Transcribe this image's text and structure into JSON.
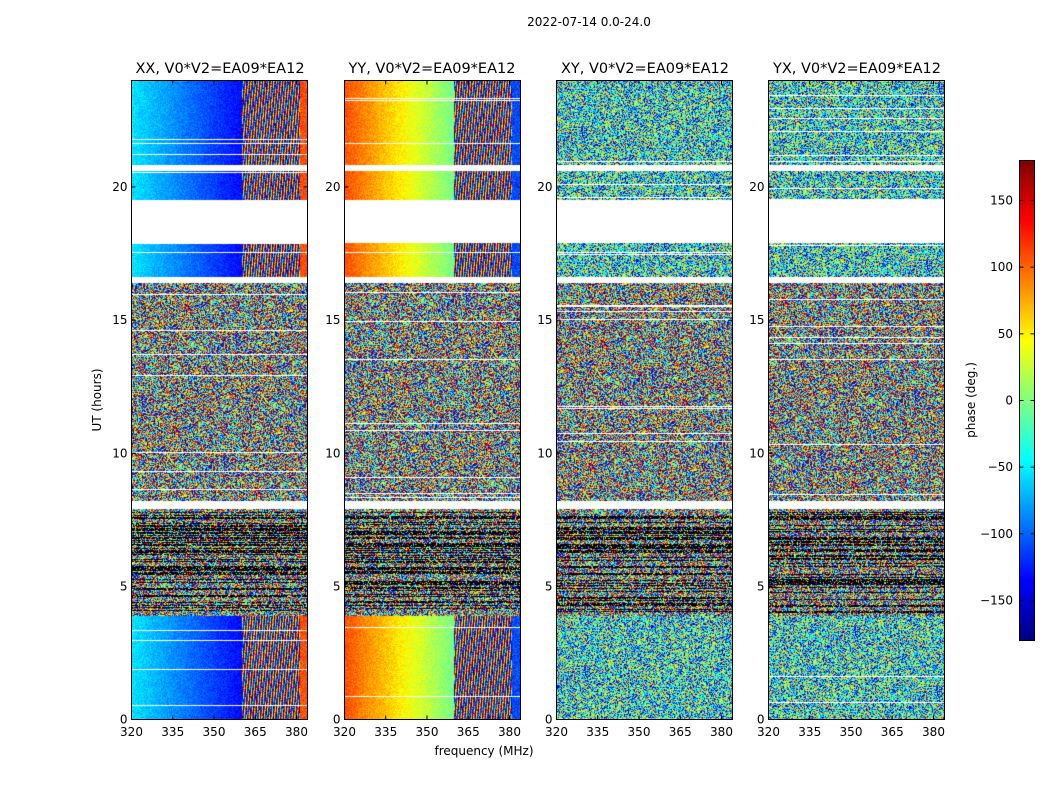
{
  "suptitle": "2022-07-14 0.0-24.0",
  "chart_data": {
    "type": "heatmap",
    "xlabel": "frequency (MHz)",
    "ylabel": "UT (hours)",
    "xlim": [
      320,
      384
    ],
    "ylim": [
      0,
      24
    ],
    "xticks": [
      "320",
      "335",
      "350",
      "365",
      "380"
    ],
    "yticks": [
      "0",
      "5",
      "10",
      "15",
      "20"
    ],
    "colorbar": {
      "label": "phase (deg.)",
      "range": [
        -180,
        180
      ],
      "ticks": [
        "150",
        "100",
        "50",
        "0",
        "−50",
        "−100",
        "−150"
      ],
      "colormap": "jet"
    },
    "panels": [
      {
        "title": "XX, V0*V2=EA09*EA12",
        "pattern": "parallel",
        "band": "cold"
      },
      {
        "title": "YY, V0*V2=EA09*EA12",
        "pattern": "parallel",
        "band": "warm"
      },
      {
        "title": "XY, V0*V2=EA09*EA12",
        "pattern": "cross",
        "band": "noise"
      },
      {
        "title": "YX, V0*V2=EA09*EA12",
        "pattern": "cross",
        "band": "noise"
      }
    ],
    "gaps_ut": [
      [
        17.9,
        19.5
      ],
      [
        16.4,
        16.6
      ],
      [
        7.9,
        8.2
      ],
      [
        20.6,
        20.8
      ]
    ],
    "regions_ut": {
      "smooth_low": [
        0,
        3.9
      ],
      "striped": [
        4.0,
        7.8
      ],
      "noisy": [
        8.2,
        16.3
      ],
      "smooth_high": [
        16.6,
        17.9
      ],
      "smooth_top": [
        19.5,
        24
      ]
    }
  }
}
